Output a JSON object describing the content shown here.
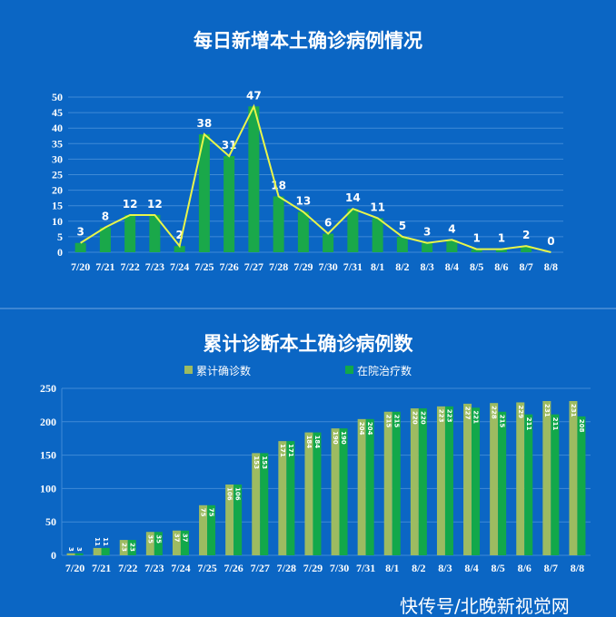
{
  "chart_data": [
    {
      "type": "bar",
      "title": "每日新增本土确诊病例情况",
      "categories": [
        "7/20",
        "7/21",
        "7/22",
        "7/23",
        "7/24",
        "7/25",
        "7/26",
        "7/27",
        "7/28",
        "7/29",
        "7/30",
        "7/31",
        "8/1",
        "8/2",
        "8/3",
        "8/4",
        "8/5",
        "8/6",
        "8/7",
        "8/8"
      ],
      "values": [
        3,
        8,
        12,
        12,
        2,
        38,
        31,
        47,
        18,
        13,
        6,
        14,
        11,
        5,
        3,
        4,
        1,
        1,
        2,
        0
      ],
      "overlay_line": true,
      "ylim": [
        0,
        50
      ],
      "yticks": [
        0,
        5,
        10,
        15,
        20,
        25,
        30,
        35,
        40,
        45,
        50
      ],
      "grid": true,
      "colors": {
        "bar": "#1aa84a",
        "line": "#e8f54a"
      }
    },
    {
      "type": "bar",
      "title": "累计诊断本土确诊病例数",
      "categories": [
        "7/20",
        "7/21",
        "7/22",
        "7/23",
        "7/24",
        "7/25",
        "7/26",
        "7/27",
        "7/28",
        "7/29",
        "7/30",
        "7/31",
        "8/1",
        "8/2",
        "8/3",
        "8/4",
        "8/5",
        "8/6",
        "8/7",
        "8/8"
      ],
      "series": [
        {
          "name": "累计确诊数",
          "values": [
            3,
            11,
            23,
            35,
            37,
            75,
            106,
            153,
            171,
            184,
            190,
            204,
            215,
            220,
            223,
            227,
            228,
            229,
            231,
            231
          ],
          "color": "#9dbb61"
        },
        {
          "name": "在院治疗数",
          "values": [
            3,
            11,
            23,
            35,
            37,
            75,
            106,
            153,
            171,
            184,
            190,
            204,
            215,
            220,
            223,
            221,
            215,
            211,
            211,
            208
          ],
          "color": "#12a84a"
        }
      ],
      "ylim": [
        0,
        250
      ],
      "yticks": [
        0,
        50,
        100,
        150,
        200,
        250
      ],
      "grid": true,
      "legend": "top"
    }
  ],
  "watermark": "快传号/北晚新视觉网"
}
